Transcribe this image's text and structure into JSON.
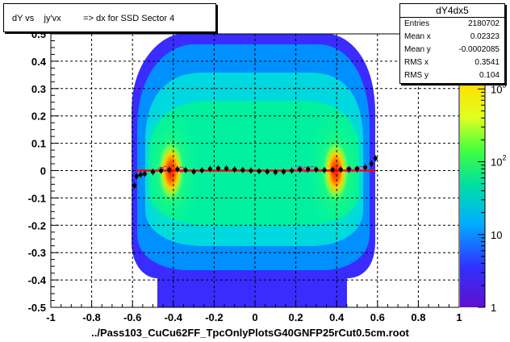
{
  "title": "dY vs    jy'vx         => dx for SSD Sector 4",
  "xlabel": "../Pass103_CuCu62FF_TpcOnlyPlotsG40GNFP25rCut0.5cm.root",
  "stats": {
    "name": "dY4dx5",
    "rows": [
      {
        "key": "Entries",
        "value": "2180702"
      },
      {
        "key": "Mean x",
        "value": "0.02323"
      },
      {
        "key": "Mean y",
        "value": "-0.0002085"
      },
      {
        "key": "RMS x",
        "value": "0.3541"
      },
      {
        "key": "RMS y",
        "value": "0.104"
      }
    ]
  },
  "chart_data": {
    "type": "heatmap",
    "title": "dY vs    jy'vx         => dx for SSD Sector 4",
    "xlabel": "../Pass103_CuCu62FF_TpcOnlyPlotsG40GNFP25rCut0.5cm.root",
    "ylabel": "",
    "xlim": [
      -1,
      1
    ],
    "ylim": [
      -0.5,
      0.5
    ],
    "x_ticks": [
      "-1",
      "-0.8",
      "-0.6",
      "-0.4",
      "-0.2",
      "0",
      "0.2",
      "0.4",
      "0.6",
      "0.8",
      "1"
    ],
    "y_ticks": [
      "-0.5",
      "-0.4",
      "-0.3",
      "-0.2",
      "-0.1",
      "0",
      "0.1",
      "0.2",
      "0.3",
      "0.4",
      "0.5"
    ],
    "colorbar": {
      "scale": "log",
      "range": [
        1,
        1000
      ],
      "tick_labels": [
        "1",
        "10",
        "10^2",
        "10^3"
      ]
    },
    "grid": true,
    "hot_spots_x": [
      -0.4,
      0.4
    ],
    "profile_points": [
      {
        "x": -0.59,
        "y": -0.055
      },
      {
        "x": -0.58,
        "y": -0.02
      },
      {
        "x": -0.56,
        "y": -0.015
      },
      {
        "x": -0.54,
        "y": -0.012
      },
      {
        "x": -0.5,
        "y": -0.005
      },
      {
        "x": -0.46,
        "y": 0.0
      },
      {
        "x": -0.42,
        "y": 0.003
      },
      {
        "x": -0.38,
        "y": 0.005
      },
      {
        "x": -0.34,
        "y": 0.002
      },
      {
        "x": -0.3,
        "y": -0.004
      },
      {
        "x": -0.26,
        "y": 0.001
      },
      {
        "x": -0.22,
        "y": 0.006
      },
      {
        "x": -0.18,
        "y": 0.008
      },
      {
        "x": -0.14,
        "y": 0.008
      },
      {
        "x": -0.1,
        "y": 0.004
      },
      {
        "x": -0.06,
        "y": 0.002
      },
      {
        "x": -0.02,
        "y": 0.0
      },
      {
        "x": 0.02,
        "y": -0.002
      },
      {
        "x": 0.06,
        "y": -0.004
      },
      {
        "x": 0.1,
        "y": -0.006
      },
      {
        "x": 0.14,
        "y": -0.004
      },
      {
        "x": 0.18,
        "y": 0.0
      },
      {
        "x": 0.22,
        "y": 0.004
      },
      {
        "x": 0.26,
        "y": 0.005
      },
      {
        "x": 0.3,
        "y": 0.004
      },
      {
        "x": 0.34,
        "y": 0.002
      },
      {
        "x": 0.38,
        "y": 0.003
      },
      {
        "x": 0.42,
        "y": 0.004
      },
      {
        "x": 0.46,
        "y": 0.005
      },
      {
        "x": 0.5,
        "y": 0.006
      },
      {
        "x": 0.54,
        "y": 0.012
      },
      {
        "x": 0.57,
        "y": 0.025
      },
      {
        "x": 0.59,
        "y": 0.045
      }
    ],
    "open_points": [
      {
        "x": -0.46,
        "y": 0.003
      },
      {
        "x": -0.44,
        "y": 0.006
      },
      {
        "x": -0.36,
        "y": 0.004
      },
      {
        "x": 0.22,
        "y": 0.006
      },
      {
        "x": 0.25,
        "y": 0.004
      },
      {
        "x": 0.28,
        "y": 0.006
      },
      {
        "x": 0.46,
        "y": 0.004
      },
      {
        "x": 0.5,
        "y": 0.005
      },
      {
        "x": 0.52,
        "y": 0.006
      }
    ],
    "fit_line": {
      "x": [
        -0.58,
        0.59
      ],
      "y": [
        0.0,
        0.0
      ],
      "color": "#ff0000"
    }
  }
}
